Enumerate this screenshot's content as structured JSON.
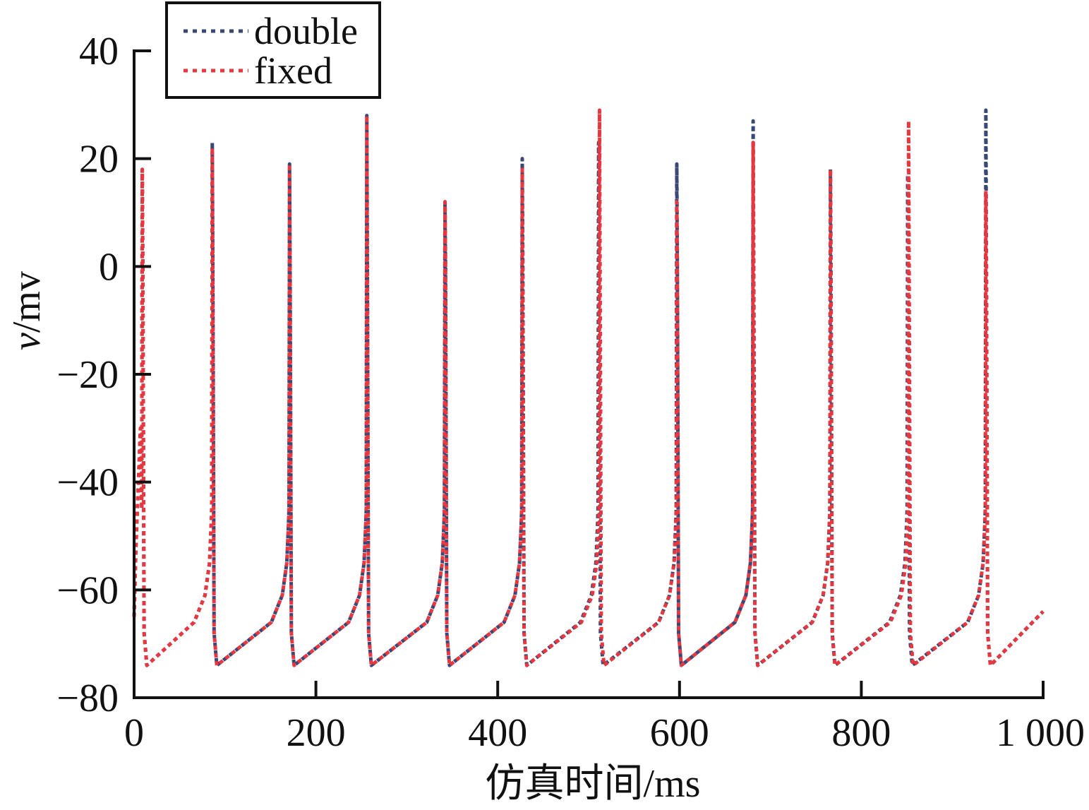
{
  "chart_data": {
    "type": "line",
    "title": "",
    "xlabel": "仿真时间/ms",
    "ylabel_italic": "v",
    "ylabel_rest": "/mv",
    "xlim": [
      0,
      1000
    ],
    "ylim": [
      -80,
      40
    ],
    "xticks": [
      0,
      200,
      400,
      600,
      800,
      1000
    ],
    "xtick_labels": [
      "0",
      "200",
      "400",
      "600",
      "800",
      "1 000"
    ],
    "yticks": [
      -80,
      -60,
      -40,
      -20,
      0,
      20,
      40
    ],
    "ytick_labels": [
      "−80",
      "−60",
      "−40",
      "−20",
      "0",
      "20",
      "40"
    ],
    "grid": false,
    "legend_position": "top-left",
    "resting_potential": -65,
    "series": [
      {
        "name": "double",
        "color": "#3a4878",
        "style": "dotted",
        "spikes": [
          {
            "t": 9,
            "peak": 18
          },
          {
            "t": 86,
            "peak": 23
          },
          {
            "t": 171,
            "peak": 19
          },
          {
            "t": 256,
            "peak": 28
          },
          {
            "t": 342,
            "peak": 12
          },
          {
            "t": 427,
            "peak": 20
          },
          {
            "t": 511,
            "peak": 23
          },
          {
            "t": 597,
            "peak": 19
          },
          {
            "t": 681,
            "peak": 27
          },
          {
            "t": 766,
            "peak": 18
          },
          {
            "t": 851,
            "peak": 17
          },
          {
            "t": 937,
            "peak": 29
          }
        ],
        "end_value": -64
      },
      {
        "name": "fixed",
        "color": "#e8383f",
        "style": "dotted",
        "spikes": [
          {
            "t": 9,
            "peak": 18
          },
          {
            "t": 86,
            "peak": 22
          },
          {
            "t": 171,
            "peak": 19
          },
          {
            "t": 256,
            "peak": 28
          },
          {
            "t": 342,
            "peak": 12
          },
          {
            "t": 427,
            "peak": 18
          },
          {
            "t": 512,
            "peak": 29
          },
          {
            "t": 597,
            "peak": 12
          },
          {
            "t": 681,
            "peak": 23
          },
          {
            "t": 766,
            "peak": 18
          },
          {
            "t": 852,
            "peak": 27
          },
          {
            "t": 937,
            "peak": 14
          }
        ],
        "end_value": -64
      }
    ]
  }
}
